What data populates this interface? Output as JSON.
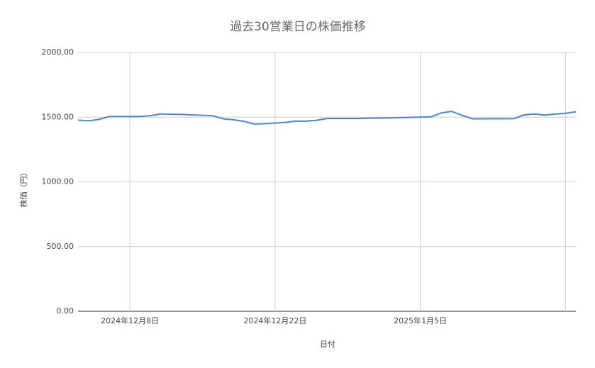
{
  "chart_data": {
    "type": "line",
    "title": "過去30営業日の株価推移",
    "x_label": "日付",
    "y_label": "株価（円）",
    "x": [
      "2024-12-03",
      "2024-12-04",
      "2024-12-05",
      "2024-12-06",
      "2024-12-08",
      "2024-12-09",
      "2024-12-10",
      "2024-12-11",
      "2024-12-12",
      "2024-12-13",
      "2024-12-16",
      "2024-12-17",
      "2024-12-18",
      "2024-12-19",
      "2024-12-20",
      "2024-12-21",
      "2024-12-22",
      "2024-12-23",
      "2024-12-24",
      "2024-12-25",
      "2024-12-26",
      "2024-12-27",
      "2024-12-30",
      "2025-01-06",
      "2025-01-07",
      "2025-01-08",
      "2025-01-09",
      "2025-01-10",
      "2025-01-14",
      "2025-01-15",
      "2025-01-16",
      "2025-01-17",
      "2025-01-18",
      "2025-01-19",
      "2025-01-20"
    ],
    "series": [
      {
        "name": "株価",
        "color": "#4a86e0",
        "values": [
          1477,
          1472,
          1482,
          1505,
          1505,
          1505,
          1512,
          1525,
          1523,
          1521,
          1511,
          1487,
          1480,
          1468,
          1447,
          1450,
          1455,
          1460,
          1470,
          1469,
          1476,
          1490,
          1490,
          1502,
          1532,
          1545,
          1515,
          1487,
          1488,
          1518,
          1525,
          1516,
          1524,
          1530,
          1542
        ]
      }
    ],
    "xlim": [
      "2024-12-03",
      "2025-01-20"
    ],
    "xticks": [
      {
        "value": "2024-12-08",
        "label": "2024年12月8日"
      },
      {
        "value": "2024-12-22",
        "label": "2024年12月22日"
      },
      {
        "value": "2025-01-05",
        "label": "2025年1月5日"
      },
      {
        "value": "2025-01-19",
        "label": null
      }
    ],
    "ylim": [
      0,
      2000
    ],
    "yticks": [
      {
        "value": 0,
        "label": "0.00"
      },
      {
        "value": 500,
        "label": "500.00"
      },
      {
        "value": 1000,
        "label": "1000.00"
      },
      {
        "value": 1500,
        "label": "1500.00"
      },
      {
        "value": 2000,
        "label": "2000.00"
      }
    ],
    "grid": true
  }
}
